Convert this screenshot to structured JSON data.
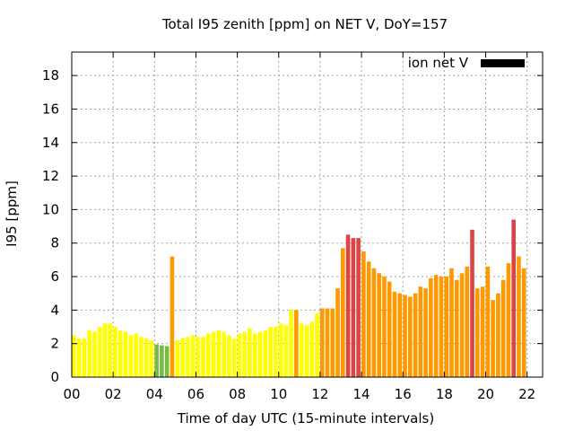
{
  "chart_data": {
    "type": "bar",
    "title": "Total I95 zenith [ppm] on NET V, DoY=157",
    "xlabel": "Time of day UTC (15-minute intervals)",
    "ylabel": "I95 [ppm]",
    "xlim": [
      0,
      22.75
    ],
    "ylim": [
      0,
      19.4
    ],
    "xticks": [
      0,
      2,
      4,
      6,
      8,
      10,
      12,
      14,
      16,
      18,
      20,
      22
    ],
    "xtick_labels": [
      "00",
      "02",
      "04",
      "06",
      "08",
      "10",
      "12",
      "14",
      "16",
      "18",
      "20",
      "22"
    ],
    "yticks": [
      0,
      2,
      4,
      6,
      8,
      10,
      12,
      14,
      16,
      18
    ],
    "grid": true,
    "legend": {
      "position": "top-right",
      "entries": [
        {
          "label": "ion net V",
          "color": "#000000"
        }
      ]
    },
    "interval_hours": 0.25,
    "bar_width_hours": 0.2,
    "colors": {
      "green": "#77bb44",
      "yellow": "#ffff00",
      "orange": "#ff9900",
      "red": "#dd4444"
    },
    "series": [
      {
        "values": [
          2.5,
          2.3,
          2.3,
          2.8,
          2.7,
          3.0,
          3.2,
          3.2,
          3.0,
          2.8,
          2.7,
          2.5,
          2.6,
          2.4,
          2.3,
          2.2,
          1.95,
          1.9,
          1.85,
          7.2,
          2.2,
          2.3,
          2.4,
          2.5,
          2.4,
          2.4,
          2.6,
          2.7,
          2.8,
          2.7,
          2.5,
          2.3,
          2.6,
          2.7,
          2.9,
          2.6,
          2.7,
          2.8,
          3.0,
          3.0,
          3.2,
          3.1,
          4.0,
          4.0,
          3.2,
          3.1,
          3.3,
          3.8,
          4.1,
          4.1,
          4.1,
          5.3,
          7.7,
          8.5,
          8.3,
          8.3,
          7.5,
          6.9,
          6.5,
          6.2,
          6.0,
          5.7,
          5.1,
          5.0,
          4.9,
          4.8,
          5.0,
          5.4,
          5.3,
          5.9,
          6.1,
          6.0,
          6.0,
          6.5,
          5.8,
          6.2,
          6.6,
          8.8,
          5.3,
          5.4,
          6.6,
          4.6,
          5.0,
          5.8,
          6.8,
          9.4,
          7.2,
          6.5
        ],
        "levels": [
          "yellow",
          "yellow",
          "yellow",
          "yellow",
          "yellow",
          "yellow",
          "yellow",
          "yellow",
          "yellow",
          "yellow",
          "yellow",
          "yellow",
          "yellow",
          "yellow",
          "yellow",
          "yellow",
          "green",
          "green",
          "green",
          "orange",
          "yellow",
          "yellow",
          "yellow",
          "yellow",
          "yellow",
          "yellow",
          "yellow",
          "yellow",
          "yellow",
          "yellow",
          "yellow",
          "yellow",
          "yellow",
          "yellow",
          "yellow",
          "yellow",
          "yellow",
          "yellow",
          "yellow",
          "yellow",
          "yellow",
          "yellow",
          "yellow",
          "orange",
          "yellow",
          "yellow",
          "yellow",
          "yellow",
          "orange",
          "orange",
          "orange",
          "orange",
          "orange",
          "red",
          "red",
          "red",
          "orange",
          "orange",
          "orange",
          "orange",
          "orange",
          "orange",
          "orange",
          "orange",
          "orange",
          "orange",
          "orange",
          "orange",
          "orange",
          "orange",
          "orange",
          "orange",
          "orange",
          "orange",
          "orange",
          "orange",
          "orange",
          "red",
          "orange",
          "orange",
          "orange",
          "orange",
          "orange",
          "orange",
          "orange",
          "red",
          "orange",
          "orange"
        ]
      }
    ]
  }
}
